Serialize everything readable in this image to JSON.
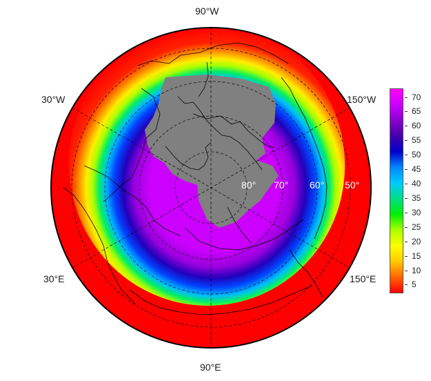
{
  "map": {
    "projection": "north-polar-orthographic",
    "colors": {
      "land_mask": "#808080",
      "coastline": "#000000",
      "graticule": "#000000"
    },
    "lon_labels": [
      "90°W",
      "30°W",
      "150°W",
      "30°E",
      "150°E",
      "90°E"
    ],
    "lat_labels": [
      "80°",
      "70°",
      "60°",
      "50°"
    ]
  },
  "colorbar": {
    "ticks": [
      "70",
      "65",
      "60",
      "55",
      "50",
      "45",
      "40",
      "35",
      "30",
      "25",
      "20",
      "15",
      "10",
      "5"
    ],
    "min": 2,
    "max": 73,
    "palette": [
      "#ff0000",
      "#ff6600",
      "#ffcc00",
      "#ffff00",
      "#aaff00",
      "#00ee00",
      "#00dd88",
      "#00ccff",
      "#0088ff",
      "#0000cc",
      "#4400aa",
      "#8800cc",
      "#cc00ff",
      "#ff00ff"
    ]
  }
}
